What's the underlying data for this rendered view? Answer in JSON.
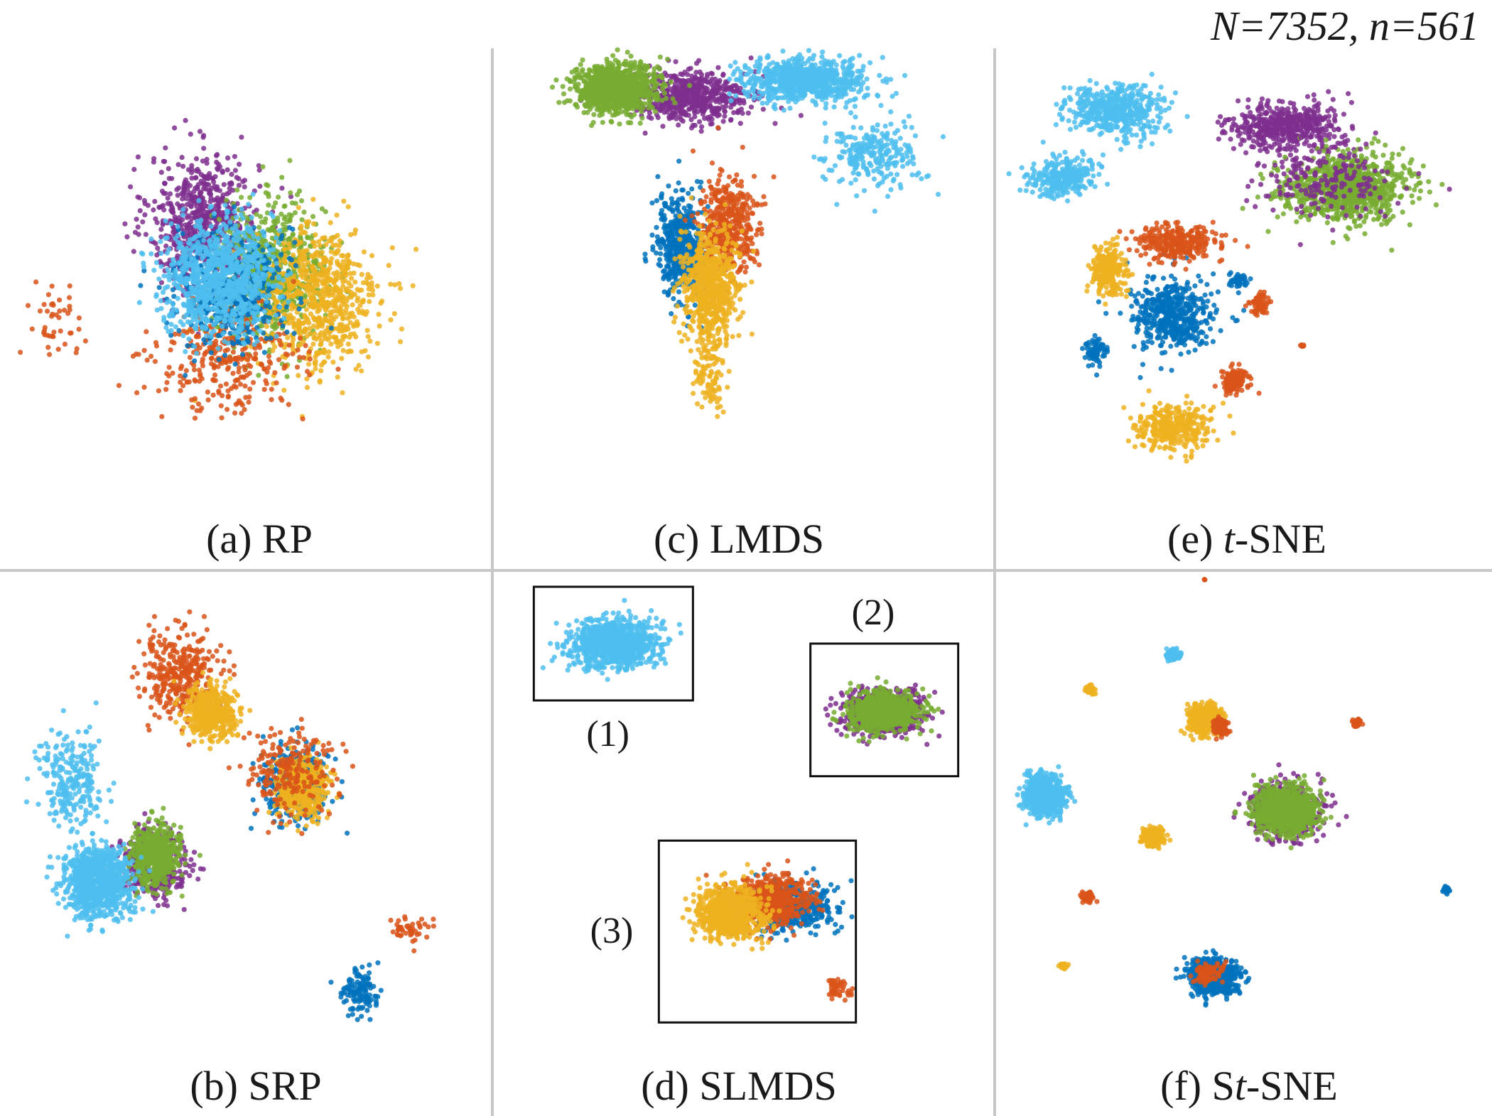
{
  "figure": {
    "note": "N=7352, n=561",
    "colors": [
      "#4dbeee",
      "#7e2f8e",
      "#77ac30",
      "#edb120",
      "#d95319",
      "#0072bd"
    ]
  },
  "chart_data": [
    {
      "type": "scatter",
      "id": "a",
      "caption": {
        "prefix": "(a) RP",
        "italic": "",
        "suffix": ""
      },
      "xlim": [
        -6,
        6
      ],
      "ylim": [
        -6,
        6
      ],
      "clusters": [
        {
          "color": "#7e2f8e",
          "center": [
            -1.0,
            1.5
          ],
          "spread": [
            1.3,
            1.6
          ],
          "count": 700
        },
        {
          "color": "#77ac30",
          "center": [
            0.8,
            0.2
          ],
          "spread": [
            1.3,
            1.6
          ],
          "count": 700
        },
        {
          "color": "#edb120",
          "center": [
            2.0,
            -0.5
          ],
          "spread": [
            1.5,
            1.7
          ],
          "count": 700
        },
        {
          "color": "#d95319",
          "center": [
            -0.4,
            -2.0
          ],
          "spread": [
            1.7,
            1.3
          ],
          "count": 320
        },
        {
          "color": "#0072bd",
          "center": [
            -0.3,
            -0.2
          ],
          "spread": [
            1.3,
            1.4
          ],
          "count": 450
        },
        {
          "color": "#4dbeee",
          "center": [
            -0.6,
            0.1
          ],
          "spread": [
            1.3,
            1.3
          ],
          "count": 900
        },
        {
          "color": "#d95319",
          "center": [
            -4.8,
            -1.2
          ],
          "spread": [
            0.7,
            1.0
          ],
          "count": 45
        }
      ]
    },
    {
      "type": "scatter",
      "id": "b",
      "caption": {
        "prefix": "(b) SRP",
        "italic": "",
        "suffix": ""
      },
      "xlim": [
        -6,
        6
      ],
      "ylim": [
        -6,
        6
      ],
      "clusters": [
        {
          "color": "#d95319",
          "center": [
            -1.6,
            3.4
          ],
          "spread": [
            1.0,
            1.0
          ],
          "count": 350
        },
        {
          "color": "#edb120",
          "center": [
            -0.8,
            2.4
          ],
          "spread": [
            0.6,
            0.6
          ],
          "count": 450
        },
        {
          "color": "#0072bd",
          "center": [
            1.4,
            0.5
          ],
          "spread": [
            0.8,
            0.9
          ],
          "count": 350
        },
        {
          "color": "#edb120",
          "center": [
            1.6,
            0.4
          ],
          "spread": [
            0.6,
            0.7
          ],
          "count": 450
        },
        {
          "color": "#d95319",
          "center": [
            1.2,
            0.8
          ],
          "spread": [
            1.1,
            1.1
          ],
          "count": 200
        },
        {
          "color": "#4dbeee",
          "center": [
            -4.5,
            0.5
          ],
          "spread": [
            0.8,
            1.1
          ],
          "count": 250
        },
        {
          "color": "#7e2f8e",
          "center": [
            -2.3,
            -1.6
          ],
          "spread": [
            0.8,
            0.8
          ],
          "count": 400
        },
        {
          "color": "#77ac30",
          "center": [
            -2.3,
            -1.4
          ],
          "spread": [
            0.6,
            0.7
          ],
          "count": 550
        },
        {
          "color": "#4dbeee",
          "center": [
            -3.8,
            -2.1
          ],
          "spread": [
            0.8,
            0.8
          ],
          "count": 900
        },
        {
          "color": "#d95319",
          "center": [
            4.4,
            -3.4
          ],
          "spread": [
            0.5,
            0.4
          ],
          "count": 45
        },
        {
          "color": "#0072bd",
          "center": [
            3.1,
            -5.0
          ],
          "spread": [
            0.45,
            0.55
          ],
          "count": 120
        }
      ]
    },
    {
      "type": "scatter",
      "id": "c",
      "caption": {
        "prefix": "(c) LMDS",
        "italic": "",
        "suffix": ""
      },
      "xlim": [
        -6,
        6
      ],
      "ylim": [
        -6,
        6
      ],
      "clusters": [
        {
          "color": "#7e2f8e",
          "center": [
            -1.6,
            4.8
          ],
          "spread": [
            1.5,
            0.6
          ],
          "count": 600
        },
        {
          "color": "#77ac30",
          "center": [
            -3.6,
            5.0
          ],
          "spread": [
            1.0,
            0.6
          ],
          "count": 1000
        },
        {
          "color": "#4dbeee",
          "center": [
            1.6,
            5.2
          ],
          "spread": [
            1.5,
            0.5
          ],
          "count": 800
        },
        {
          "color": "#4dbeee",
          "center": [
            3.5,
            3.2
          ],
          "spread": [
            1.2,
            0.8
          ],
          "count": 250
        },
        {
          "color": "#0072bd",
          "center": [
            -1.8,
            0.9
          ],
          "spread": [
            0.6,
            1.2
          ],
          "count": 450
        },
        {
          "color": "#d95319",
          "center": [
            -0.5,
            1.4
          ],
          "spread": [
            0.7,
            1.2
          ],
          "count": 450
        },
        {
          "color": "#edb120",
          "center": [
            -1.0,
            -0.1
          ],
          "spread": [
            0.7,
            1.2
          ],
          "count": 650
        },
        {
          "color": "#edb120",
          "center": [
            -1.0,
            -2.3
          ],
          "spread": [
            0.45,
            1.1
          ],
          "count": 110
        }
      ]
    },
    {
      "type": "scatter",
      "id": "d",
      "caption": {
        "prefix": "(d) SLMDS",
        "italic": "",
        "suffix": ""
      },
      "xlim": [
        -6,
        6
      ],
      "ylim": [
        -6,
        6
      ],
      "insets": [
        {
          "label": "(1)",
          "box": [
            -5.6,
            2.7,
            -1.4,
            5.7
          ],
          "label_pos": [
            -3.5,
            1.8
          ]
        },
        {
          "label": "(2)",
          "box": [
            1.7,
            0.7,
            5.6,
            4.2
          ],
          "label_pos": [
            3.5,
            5.0
          ]
        },
        {
          "label": "(3)",
          "box": [
            -2.3,
            -5.8,
            2.9,
            -1.0
          ],
          "label_pos": [
            -3.4,
            -3.4
          ]
        }
      ],
      "clusters": [
        {
          "color": "#4dbeee",
          "center": [
            -3.5,
            4.2
          ],
          "spread": [
            1.0,
            0.55
          ],
          "count": 1000
        },
        {
          "color": "#7e2f8e",
          "center": [
            3.6,
            2.4
          ],
          "spread": [
            1.0,
            0.55
          ],
          "count": 550
        },
        {
          "color": "#77ac30",
          "center": [
            3.6,
            2.4
          ],
          "spread": [
            0.8,
            0.45
          ],
          "count": 900
        },
        {
          "color": "#0072bd",
          "center": [
            1.2,
            -2.8
          ],
          "spread": [
            1.0,
            0.6
          ],
          "count": 450
        },
        {
          "color": "#d95319",
          "center": [
            0.6,
            -2.6
          ],
          "spread": [
            1.0,
            0.6
          ],
          "count": 550
        },
        {
          "color": "#edb120",
          "center": [
            -0.4,
            -2.9
          ],
          "spread": [
            0.8,
            0.6
          ],
          "count": 750
        },
        {
          "color": "#d95319",
          "center": [
            2.4,
            -4.9
          ],
          "spread": [
            0.3,
            0.3
          ],
          "count": 45
        }
      ]
    },
    {
      "type": "scatter",
      "id": "e",
      "caption": {
        "prefix": "(e) ",
        "italic": "t",
        "suffix": "-SNE"
      },
      "xlim": [
        -6,
        6
      ],
      "ylim": [
        -6,
        6
      ],
      "clusters": [
        {
          "color": "#4dbeee",
          "center": [
            -3.3,
            4.4
          ],
          "spread": [
            1.1,
            0.6
          ],
          "count": 500
        },
        {
          "color": "#4dbeee",
          "center": [
            -4.6,
            2.7
          ],
          "spread": [
            0.8,
            0.45
          ],
          "count": 300
        },
        {
          "color": "#7e2f8e",
          "center": [
            1.1,
            4.0
          ],
          "spread": [
            1.3,
            0.55
          ],
          "count": 500
        },
        {
          "color": "#77ac30",
          "center": [
            2.7,
            2.4
          ],
          "spread": [
            1.4,
            0.8
          ],
          "count": 900
        },
        {
          "color": "#7e2f8e",
          "center": [
            2.0,
            2.6
          ],
          "spread": [
            1.6,
            0.9
          ],
          "count": 200
        },
        {
          "color": "#0072bd",
          "center": [
            -1.8,
            -0.9
          ],
          "spread": [
            0.9,
            0.8
          ],
          "count": 500
        },
        {
          "color": "#d95319",
          "center": [
            -1.7,
            1.0
          ],
          "spread": [
            0.9,
            0.4
          ],
          "count": 300
        },
        {
          "color": "#edb120",
          "center": [
            -3.4,
            0.2
          ],
          "spread": [
            0.4,
            0.6
          ],
          "count": 220
        },
        {
          "color": "#edb120",
          "center": [
            -1.8,
            -3.8
          ],
          "spread": [
            0.9,
            0.5
          ],
          "count": 330
        },
        {
          "color": "#d95319",
          "center": [
            -0.2,
            -2.6
          ],
          "spread": [
            0.35,
            0.35
          ],
          "count": 120
        },
        {
          "color": "#d95319",
          "center": [
            0.4,
            -0.6
          ],
          "spread": [
            0.2,
            0.25
          ],
          "count": 60
        },
        {
          "color": "#0072bd",
          "center": [
            -0.1,
            0.0
          ],
          "spread": [
            0.2,
            0.2
          ],
          "count": 50
        },
        {
          "color": "#0072bd",
          "center": [
            -3.8,
            -1.8
          ],
          "spread": [
            0.25,
            0.3
          ],
          "count": 70
        },
        {
          "color": "#d95319",
          "center": [
            1.5,
            -1.7
          ],
          "spread": [
            0.05,
            0.05
          ],
          "count": 8
        }
      ]
    },
    {
      "type": "scatter",
      "id": "f",
      "caption": {
        "prefix": "(f) S",
        "italic": "t",
        "suffix": "-SNE"
      },
      "xlim": [
        -6,
        6
      ],
      "ylim": [
        -6,
        6
      ],
      "clusters": [
        {
          "color": "#4dbeee",
          "center": [
            -1.8,
            3.9
          ],
          "spread": [
            0.15,
            0.13
          ],
          "count": 120
        },
        {
          "color": "#edb120",
          "center": [
            -3.9,
            3.0
          ],
          "spread": [
            0.1,
            0.1
          ],
          "count": 40
        },
        {
          "color": "#edb120",
          "center": [
            -1.0,
            2.2
          ],
          "spread": [
            0.35,
            0.35
          ],
          "count": 450
        },
        {
          "color": "#d95319",
          "center": [
            -0.6,
            2.0
          ],
          "spread": [
            0.2,
            0.2
          ],
          "count": 80
        },
        {
          "color": "#d95319",
          "center": [
            2.9,
            2.1
          ],
          "spread": [
            0.1,
            0.1
          ],
          "count": 40
        },
        {
          "color": "#4dbeee",
          "center": [
            -5.1,
            0.2
          ],
          "spread": [
            0.45,
            0.45
          ],
          "count": 800
        },
        {
          "color": "#7e2f8e",
          "center": [
            1.1,
            -0.2
          ],
          "spread": [
            0.8,
            0.65
          ],
          "count": 600
        },
        {
          "color": "#77ac30",
          "center": [
            1.1,
            -0.2
          ],
          "spread": [
            0.7,
            0.55
          ],
          "count": 900
        },
        {
          "color": "#edb120",
          "center": [
            -2.3,
            -0.9
          ],
          "spread": [
            0.25,
            0.22
          ],
          "count": 180
        },
        {
          "color": "#d95319",
          "center": [
            -4.0,
            -2.5
          ],
          "spread": [
            0.15,
            0.12
          ],
          "count": 60
        },
        {
          "color": "#0072bd",
          "center": [
            5.2,
            -2.3
          ],
          "spread": [
            0.08,
            0.08
          ],
          "count": 30
        },
        {
          "color": "#edb120",
          "center": [
            -4.6,
            -4.3
          ],
          "spread": [
            0.08,
            0.08
          ],
          "count": 30
        },
        {
          "color": "#0072bd",
          "center": [
            -0.8,
            -4.6
          ],
          "spread": [
            0.55,
            0.4
          ],
          "count": 800
        },
        {
          "color": "#d95319",
          "center": [
            -0.9,
            -4.5
          ],
          "spread": [
            0.35,
            0.3
          ],
          "count": 80
        },
        {
          "color": "#d95319",
          "center": [
            -1.0,
            5.9
          ],
          "spread": [
            0.02,
            0.02
          ],
          "count": 3
        }
      ]
    }
  ]
}
